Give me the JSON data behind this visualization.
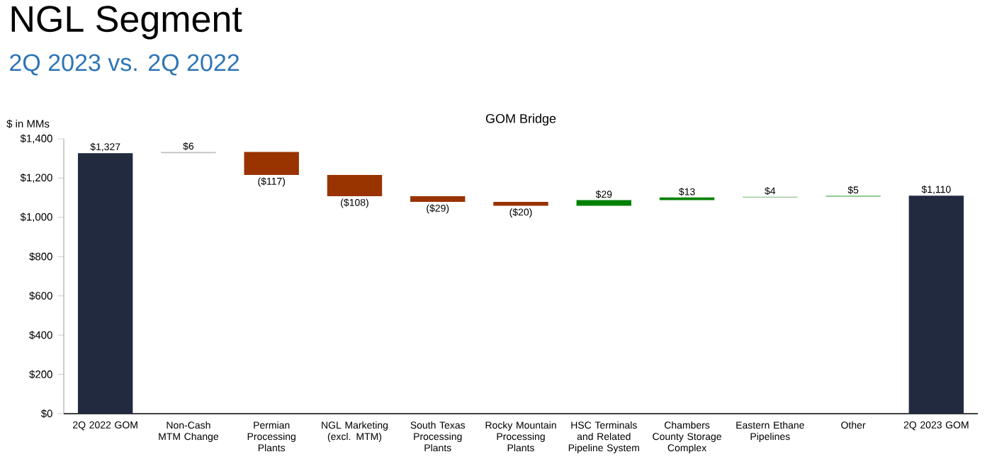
{
  "chart_data": {
    "type": "bar",
    "title": "NGL Segment",
    "subtitle": "2Q 2023 vs. 2Q 2022",
    "ylabel": "$ in MMs",
    "annotations": [
      "GOM Bridge"
    ],
    "categories": [
      "2Q 2022 GOM",
      "Non-Cash MTM Change",
      "Permian Processing Plants",
      "NGL Marketing (excl. MTM)",
      "South Texas Processing Plants",
      "Rocky Mountain Processing Plants",
      "HSC Terminals and Related Pipeline System",
      "Chambers County Storage Complex",
      "Eastern Ethane Pipelines",
      "Other",
      "2Q 2023 GOM"
    ],
    "values": [
      1327,
      6,
      -117,
      -108,
      -29,
      -20,
      29,
      13,
      4,
      5,
      1110
    ],
    "base": [
      0,
      1327,
      1333,
      1216,
      1108,
      1079,
      1059,
      1088,
      1101,
      1105,
      0
    ],
    "colors": [
      "#222a40",
      "#bfbfbf",
      "#993300",
      "#993300",
      "#993300",
      "#993300",
      "#008000",
      "#008000",
      "#70b870",
      "#70b870",
      "#222a40"
    ],
    "value_labels": [
      "$1,327",
      "$6",
      "($117)",
      "($108)",
      "($29)",
      "($20)",
      "$29",
      "$13",
      "$4",
      "$5",
      "$1,110"
    ],
    "ylim": [
      0,
      1400
    ],
    "yticks": [
      {
        "value": 0,
        "label": "$0"
      },
      {
        "value": 200,
        "label": "$200"
      },
      {
        "value": 400,
        "label": "$400"
      },
      {
        "value": 600,
        "label": "$600"
      },
      {
        "value": 800,
        "label": "$800"
      },
      {
        "value": 1000,
        "label": "$1,000"
      },
      {
        "value": 1200,
        "label": "$1,200"
      },
      {
        "value": 1400,
        "label": "$1,400"
      }
    ]
  }
}
